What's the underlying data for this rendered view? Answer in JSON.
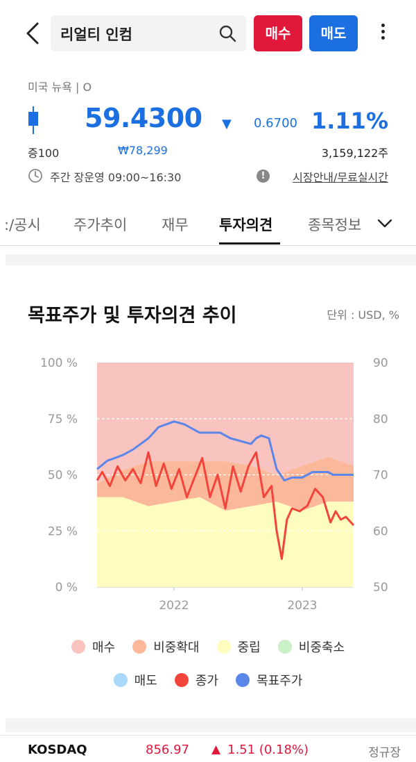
{
  "header": {
    "search_text": "리얼티 인컴",
    "buy_label": "매수",
    "sell_label": "매도"
  },
  "quote": {
    "exchange": "미국 뉴욕 | O",
    "price": "59.4300",
    "direction_icon": "▼",
    "change": "0.6700",
    "change_pct": "1.11%",
    "margin": "증100",
    "krw_price": "₩78,299",
    "volume": "3,159,122주",
    "hours": "주간 장운영 09:00~16:30",
    "info_link": "시장안내/무료실시간"
  },
  "tabs": [
    {
      "label": ":/공시"
    },
    {
      "label": "주가추이"
    },
    {
      "label": "재무"
    },
    {
      "label": "투자의견"
    },
    {
      "label": "종목정보"
    }
  ],
  "card": {
    "title": "목표주가 및 투자의견 추이",
    "unit": "단위 : USD, %"
  },
  "colors": {
    "buy": "#f9c4bf",
    "overweight": "#fbb89a",
    "neutral": "#fefcbe",
    "underweight": "#c9f0c6",
    "sell": "#a9d8fb",
    "close": "#f2443a",
    "target": "#5a86ea"
  },
  "chart_data": {
    "type": "area",
    "title": "목표주가 및 투자의견 추이",
    "unit": "단위 : USD, %",
    "x_ticks": [
      "2022",
      "2023"
    ],
    "y_left_ticks": [
      "100 %",
      "75 %",
      "50 %",
      "25 %",
      "0 %"
    ],
    "y_right_ticks": [
      "90",
      "80",
      "70",
      "60",
      "50"
    ],
    "y_left_range": [
      0,
      100
    ],
    "y_right_range": [
      50,
      90
    ],
    "x_range_months": [
      "2021-06",
      "2023-06"
    ],
    "series": [
      {
        "name": "목표주가",
        "t": [
          0,
          0.04,
          0.1,
          0.14,
          0.2,
          0.24,
          0.3,
          0.34,
          0.4,
          0.44,
          0.48,
          0.52,
          0.56,
          0.6,
          0.62,
          0.64,
          0.67,
          0.7,
          0.73,
          0.76,
          0.8,
          0.84,
          0.88,
          0.9,
          0.92,
          0.96,
          1.0
        ],
        "values": [
          71,
          72.5,
          73.5,
          74.5,
          76.5,
          78.5,
          79.5,
          79,
          77.5,
          77.5,
          77.5,
          76.5,
          76,
          75.5,
          76.5,
          77,
          76.5,
          71,
          69,
          69.5,
          69.5,
          70.5,
          70.5,
          70.5,
          70,
          70,
          70
        ]
      },
      {
        "name": "종가",
        "t": [
          0,
          0.02,
          0.05,
          0.08,
          0.11,
          0.14,
          0.17,
          0.2,
          0.23,
          0.26,
          0.29,
          0.32,
          0.35,
          0.38,
          0.41,
          0.44,
          0.47,
          0.5,
          0.53,
          0.56,
          0.59,
          0.62,
          0.65,
          0.68,
          0.7,
          0.72,
          0.74,
          0.76,
          0.79,
          0.82,
          0.85,
          0.88,
          0.91,
          0.93,
          0.95,
          0.97,
          1.0
        ],
        "values": [
          69,
          70.5,
          68,
          71.5,
          69,
          71,
          68.5,
          74,
          68,
          72,
          67.5,
          71,
          66,
          69.5,
          73,
          66,
          70,
          64,
          71.5,
          67,
          71.5,
          74,
          66,
          68,
          60,
          55,
          62,
          64,
          63.5,
          64.5,
          67.5,
          66,
          61.5,
          63.5,
          62,
          62.5,
          61
        ]
      }
    ],
    "opinion_bands": {
      "t": [
        0,
        0.1,
        0.2,
        0.3,
        0.4,
        0.5,
        0.6,
        0.7,
        0.8,
        0.9,
        1.0
      ],
      "buy_pct": [
        54,
        48,
        44,
        44,
        44,
        44,
        46,
        50,
        46,
        42,
        46
      ],
      "overweight_pct": [
        6,
        12,
        20,
        18,
        16,
        22,
        18,
        12,
        20,
        20,
        16
      ],
      "neutral_pct": [
        40,
        40,
        36,
        38,
        40,
        34,
        36,
        38,
        34,
        38,
        38
      ]
    },
    "legend": [
      "매수",
      "비중확대",
      "중립",
      "비중축소",
      "매도",
      "종가",
      "목표주가"
    ],
    "grid": true,
    "legend_position": "bottom"
  },
  "ticker": {
    "name": "KOSDAQ",
    "value": "856.97",
    "arrow": "▲",
    "change": "1.51 (0.18%)",
    "status": "정규장"
  }
}
